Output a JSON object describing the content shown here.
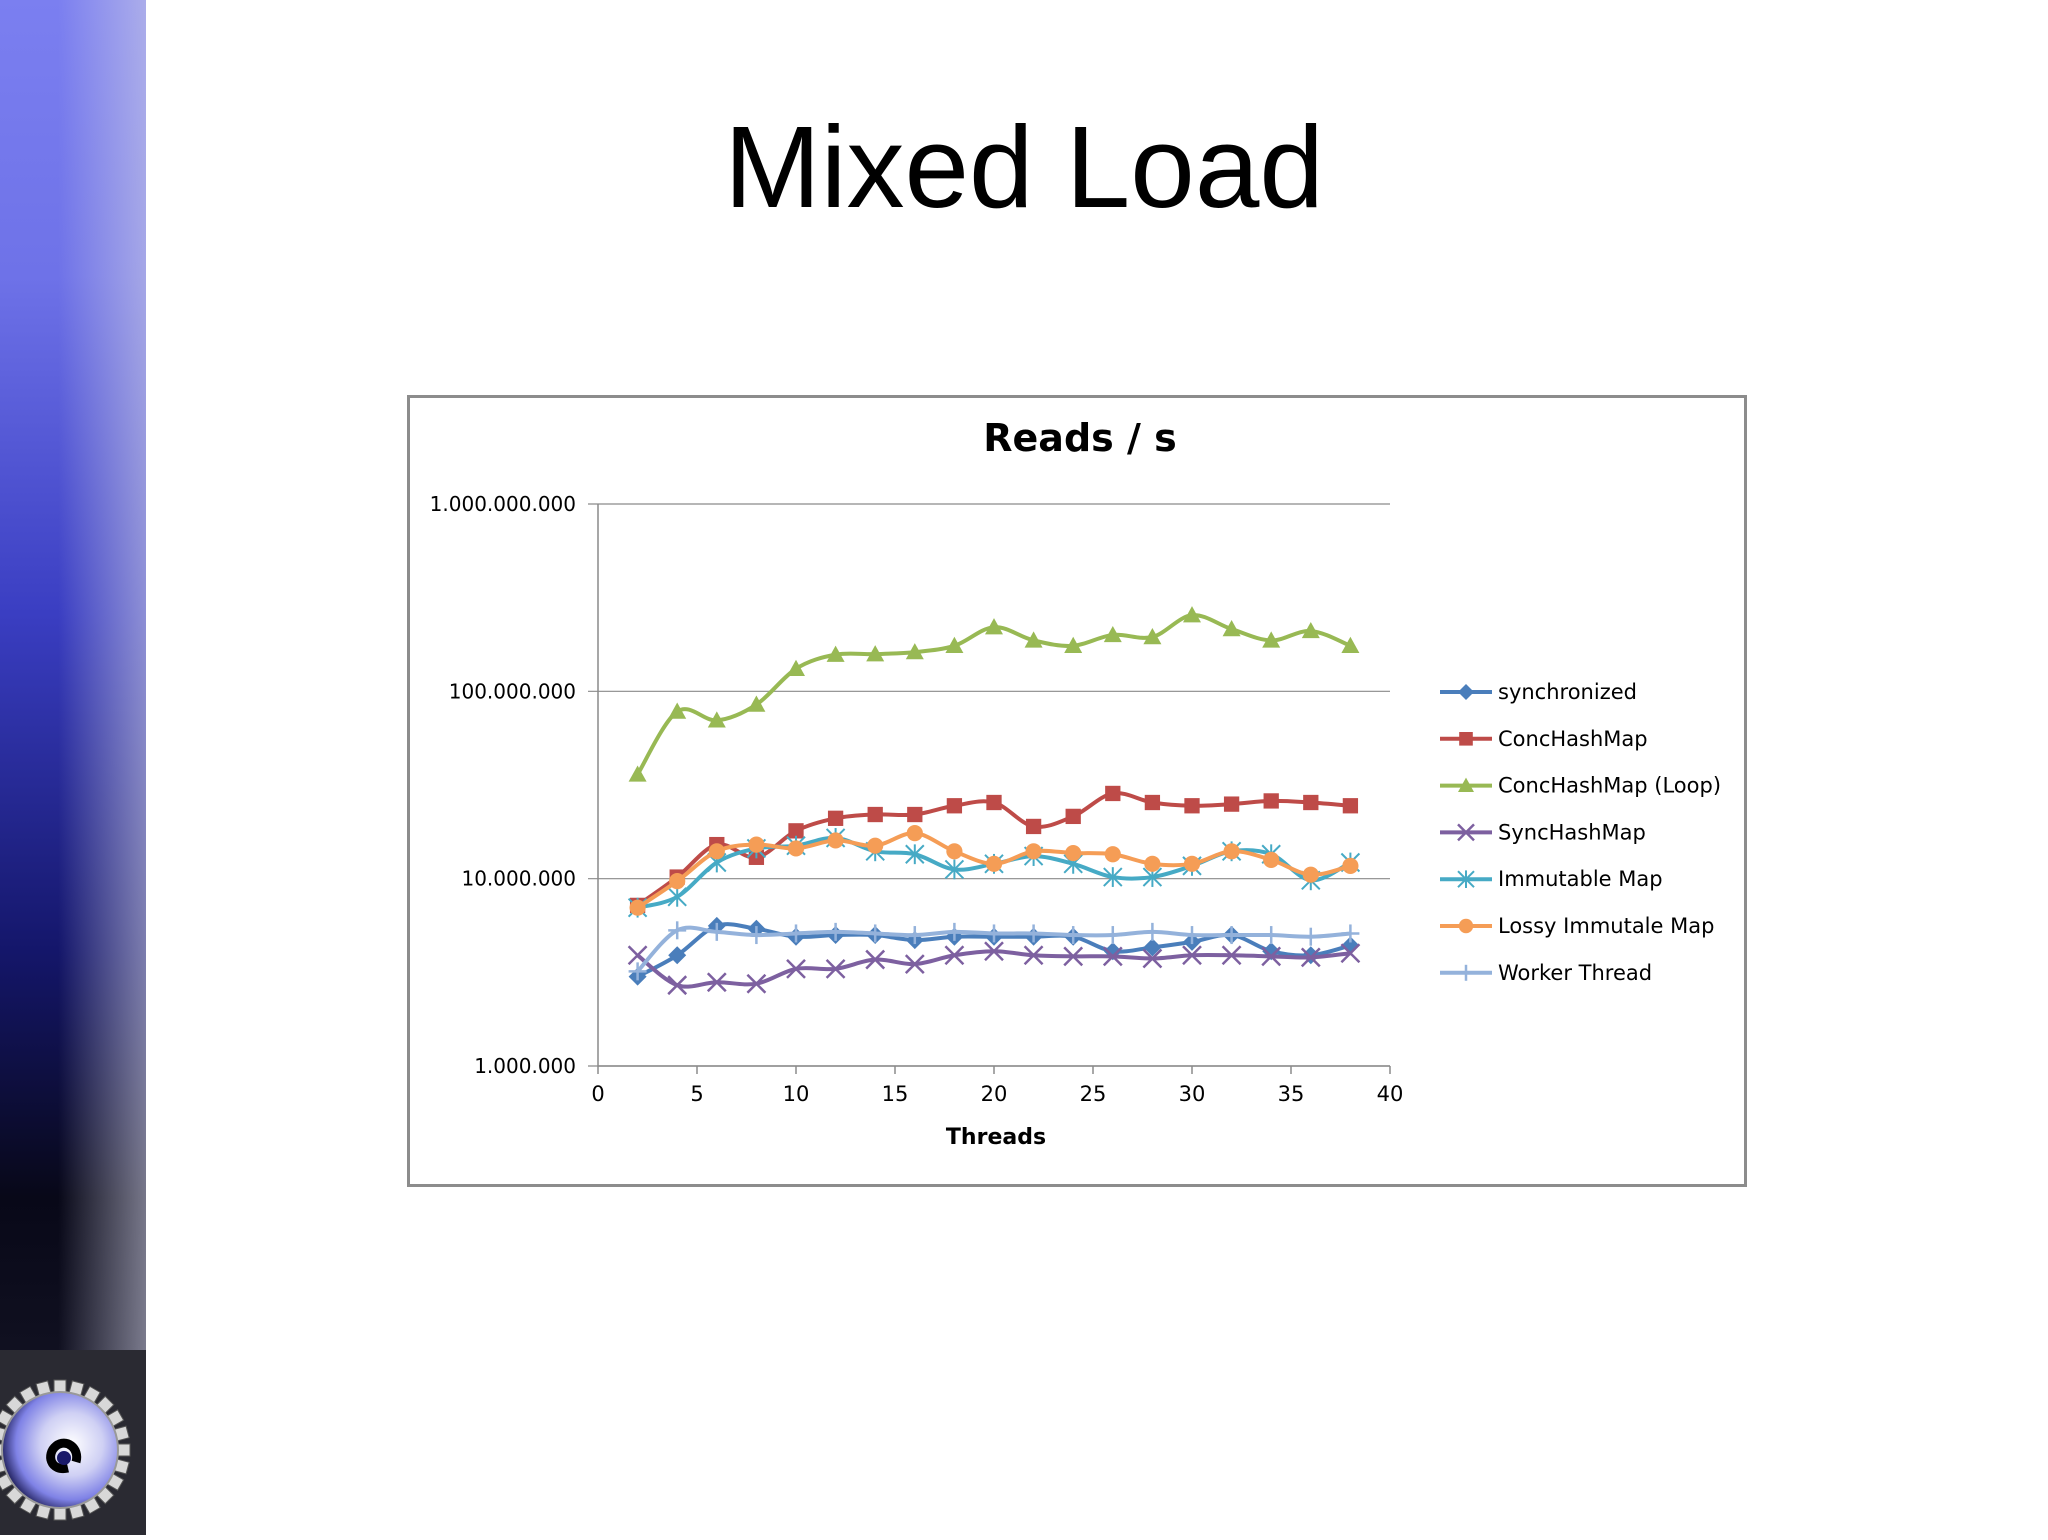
{
  "slide": {
    "title": "Mixed Load"
  },
  "chart_data": {
    "type": "line",
    "title": "Reads / s",
    "xlabel": "Threads",
    "ylabel": "",
    "yscale": "log",
    "xlim": [
      0,
      40
    ],
    "ylim": [
      1000000,
      1000000000
    ],
    "x_ticks": [
      "0",
      "5",
      "10",
      "15",
      "20",
      "25",
      "30",
      "35",
      "40"
    ],
    "y_ticks": [
      "1.000.000",
      "10.000.000",
      "100.000.000",
      "1.000.000.000"
    ],
    "grid": "horizontal",
    "legend_position": "right",
    "x": [
      2,
      4,
      6,
      8,
      10,
      12,
      14,
      16,
      18,
      20,
      22,
      24,
      26,
      28,
      30,
      32,
      34,
      36,
      38
    ],
    "series": [
      {
        "name": "synchronized",
        "color": "#4a7ebb",
        "marker": "diamond",
        "values": [
          3000000,
          3900000,
          5600000,
          5400000,
          4900000,
          5000000,
          5000000,
          4700000,
          4900000,
          4900000,
          4900000,
          4900000,
          4100000,
          4300000,
          4600000,
          5000000,
          4100000,
          3900000,
          4400000
        ]
      },
      {
        "name": "ConcHashMap",
        "color": "#be4b48",
        "marker": "square",
        "values": [
          7200000,
          10200000,
          15200000,
          13000000,
          18000000,
          21000000,
          22000000,
          22000000,
          24500000,
          25500000,
          19000000,
          21500000,
          28500000,
          25500000,
          24500000,
          25000000,
          26000000,
          25500000,
          24500000
        ]
      },
      {
        "name": "ConcHashMap (Loop)",
        "color": "#98b954",
        "marker": "triangle",
        "values": [
          36000000,
          78000000,
          70000000,
          85000000,
          132000000,
          157000000,
          158000000,
          162000000,
          175000000,
          220000000,
          187000000,
          175000000,
          200000000,
          195000000,
          255000000,
          215000000,
          187000000,
          210000000,
          175000000
        ]
      },
      {
        "name": "SyncHashMap",
        "color": "#7d60a0",
        "marker": "x",
        "values": [
          3900000,
          2700000,
          2800000,
          2750000,
          3300000,
          3300000,
          3700000,
          3500000,
          3900000,
          4100000,
          3900000,
          3850000,
          3850000,
          3750000,
          3900000,
          3900000,
          3850000,
          3800000,
          4000000
        ]
      },
      {
        "name": "Immutable Map",
        "color": "#46aac5",
        "marker": "star",
        "values": [
          7000000,
          8000000,
          12200000,
          14500000,
          15000000,
          16500000,
          14000000,
          13500000,
          11200000,
          12000000,
          13200000,
          12000000,
          10200000,
          10200000,
          11700000,
          14000000,
          13500000,
          9800000,
          12200000
        ]
      },
      {
        "name": "Lossy Immutale Map",
        "color": "#f59d56",
        "marker": "circle",
        "values": [
          7000000,
          9700000,
          14000000,
          15200000,
          14500000,
          16000000,
          15000000,
          17500000,
          14000000,
          12000000,
          14000000,
          13700000,
          13500000,
          12000000,
          12000000,
          14000000,
          12600000,
          10500000,
          11700000
        ]
      },
      {
        "name": "Worker Thread",
        "color": "#94b2db",
        "marker": "plus",
        "values": [
          3200000,
          5300000,
          5200000,
          5000000,
          5100000,
          5200000,
          5100000,
          5000000,
          5200000,
          5100000,
          5100000,
          5000000,
          5000000,
          5200000,
          5000000,
          5000000,
          5000000,
          4900000,
          5100000
        ]
      }
    ]
  }
}
